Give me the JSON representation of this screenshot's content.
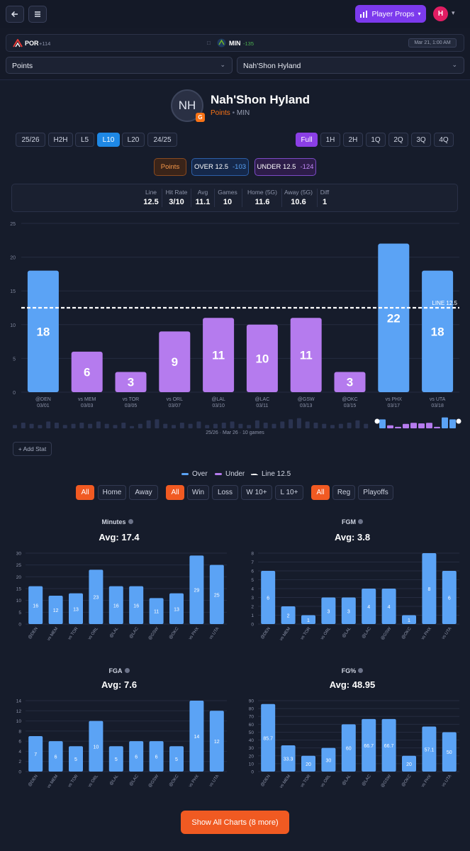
{
  "topbar": {
    "player_props_label": "Player Props",
    "user_initial": "H"
  },
  "game": {
    "away_team": "POR",
    "away_odds": "+114",
    "home_team": "MIN",
    "home_odds": "-135",
    "datetime": "Mar 21, 1:00 AM"
  },
  "selectors": {
    "stat": "Points",
    "player": "Nah'Shon Hyland"
  },
  "player": {
    "initials": "NH",
    "position": "G",
    "name": "Nah'Shon Hyland",
    "stat": "Points",
    "team": "MIN"
  },
  "ranges": [
    "25/26",
    "H2H",
    "L5",
    "L10",
    "L20",
    "24/25"
  ],
  "range_selected": "L10",
  "periods": [
    "Full",
    "1H",
    "2H",
    "1Q",
    "2Q",
    "3Q",
    "4Q"
  ],
  "period_selected": "Full",
  "lines": {
    "market": "Points",
    "over_label": "OVER 12.5",
    "over_odds": "-103",
    "under_label": "UNDER 12.5",
    "under_odds": "-124"
  },
  "summary": [
    {
      "label": "Line",
      "value": "12.5"
    },
    {
      "label": "Hit Rate",
      "value": "3/10"
    },
    {
      "label": "Avg",
      "value": "11.1"
    },
    {
      "label": "Games",
      "value": "10"
    },
    {
      "label": "Home (5G)",
      "value": "11.6"
    },
    {
      "label": "Away (5G)",
      "value": "10.6"
    },
    {
      "label": "Diff",
      "value": "1"
    }
  ],
  "timeline_caption": "25/26 · Mar 26 · 10 games",
  "add_stat_label": "+ Add Stat",
  "legend": {
    "over": "Over",
    "under": "Under",
    "line": "Line 12.5"
  },
  "filters": {
    "location": [
      "All",
      "Home",
      "Away"
    ],
    "result": [
      "All",
      "Win",
      "Loss",
      "W 10+",
      "L 10+"
    ],
    "season": [
      "All",
      "Reg",
      "Playoffs"
    ]
  },
  "show_all_label": "Show All Charts (8 more)",
  "colors": {
    "over": "#5ba3f5",
    "under": "#b57bee",
    "accent": "#f15a22",
    "brand": "#7c3aed"
  },
  "chart_data": [
    {
      "type": "bar",
      "title": "Points",
      "categories": [
        "@DEN",
        "vs MEM",
        "vs TOR",
        "vs ORL",
        "@LAL",
        "@LAC",
        "@GSW",
        "@OKC",
        "vs PHX",
        "vs UTA"
      ],
      "dates": [
        "03/01",
        "03/03",
        "03/05",
        "03/07",
        "03/10",
        "03/11",
        "03/13",
        "03/15",
        "03/17",
        "03/18"
      ],
      "values": [
        18,
        6,
        3,
        9,
        11,
        10,
        11,
        3,
        22,
        18
      ],
      "line": 12.5,
      "line_label": "LINE 12.5",
      "yticks": [
        0,
        5,
        10,
        15,
        20,
        25
      ],
      "ylim": [
        0,
        25
      ]
    },
    {
      "type": "bar",
      "title": "Minutes",
      "avg": "Avg: 17.4",
      "categories": [
        "@DEN",
        "vs MEM",
        "vs TOR",
        "vs ORL",
        "@LAL",
        "@LAC",
        "@GSW",
        "@OKC",
        "vs PHX",
        "vs UTA"
      ],
      "values": [
        16,
        12,
        13,
        23,
        16,
        16,
        11,
        13,
        29,
        25
      ],
      "yticks": [
        0,
        5,
        10,
        15,
        20,
        25,
        30
      ],
      "ylim": [
        0,
        30
      ]
    },
    {
      "type": "bar",
      "title": "FGM",
      "avg": "Avg: 3.8",
      "categories": [
        "@DEN",
        "vs MEM",
        "vs TOR",
        "vs ORL",
        "@LAL",
        "@LAC",
        "@GSW",
        "@OKC",
        "vs PHX",
        "vs UTA"
      ],
      "values": [
        6,
        2,
        1,
        3,
        3,
        4,
        4,
        1,
        8,
        6
      ],
      "yticks": [
        0,
        1,
        2,
        3,
        4,
        5,
        6,
        7,
        8
      ],
      "ylim": [
        0,
        8
      ]
    },
    {
      "type": "bar",
      "title": "FGA",
      "avg": "Avg: 7.6",
      "categories": [
        "@DEN",
        "vs MEM",
        "vs TOR",
        "vs ORL",
        "@LAL",
        "@LAC",
        "@GSW",
        "@OKC",
        "vs PHX",
        "vs UTA"
      ],
      "values": [
        7,
        6,
        5,
        10,
        5,
        6,
        6,
        5,
        14,
        12
      ],
      "yticks": [
        0,
        2,
        4,
        6,
        8,
        10,
        12,
        14
      ],
      "ylim": [
        0,
        14
      ]
    },
    {
      "type": "bar",
      "title": "FG%",
      "avg": "Avg: 48.95",
      "categories": [
        "@DEN",
        "vs MEM",
        "vs TOR",
        "vs ORL",
        "@LAL",
        "@LAC",
        "@GSW",
        "@OKC",
        "vs PHX",
        "vs UTA"
      ],
      "values": [
        85.7,
        33.3,
        20,
        30,
        60,
        66.7,
        66.7,
        20,
        57.1,
        50
      ],
      "yticks": [
        0,
        10,
        20,
        30,
        40,
        50,
        60,
        70,
        80,
        90
      ],
      "ylim": [
        0,
        90
      ]
    }
  ]
}
